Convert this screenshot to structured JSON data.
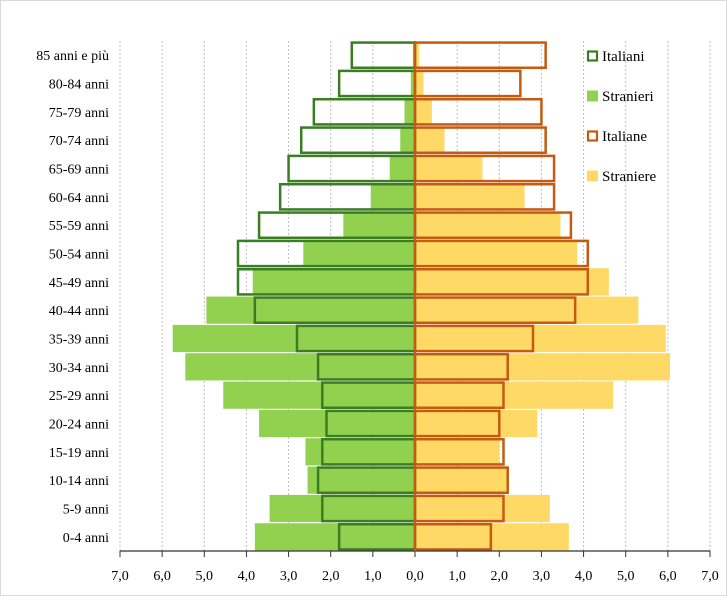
{
  "colors": {
    "italiani": "#3a7d22",
    "stranieri": "#92d050",
    "italiane": "#c55a11",
    "straniere": "#ffd966",
    "axis": "#333333",
    "grid": "#bfbfbf",
    "center": "#c55a11"
  },
  "chart_data": {
    "type": "bar",
    "orientation": "horizontal",
    "subtype": "population-pyramid",
    "categories": [
      "85 anni e più",
      "80-84 anni",
      "75-79 anni",
      "70-74 anni",
      "65-69 anni",
      "60-64 anni",
      "55-59 anni",
      "50-54 anni",
      "45-49 anni",
      "40-44 anni",
      "35-39 anni",
      "30-34 anni",
      "25-29 anni",
      "20-24 anni",
      "15-19 anni",
      "10-14 anni",
      "5-9 anni",
      "0-4 anni"
    ],
    "xlim": [
      -7,
      7
    ],
    "x_ticks": [
      -7,
      -6,
      -5,
      -4,
      -3,
      -2,
      -1,
      0,
      1,
      2,
      3,
      4,
      5,
      6,
      7
    ],
    "x_tick_labels": [
      "7,0",
      "6,0",
      "5,0",
      "4,0",
      "3,0",
      "2,0",
      "1,0",
      "0,0",
      "1,0",
      "2,0",
      "3,0",
      "4,0",
      "5,0",
      "6,0",
      "7,0"
    ],
    "grid": "vertical-dashed",
    "legend_position": "top-right",
    "series": [
      {
        "name": "Italiani",
        "side": "left",
        "style": "outline",
        "color_key": "italiani",
        "values": [
          1.5,
          1.8,
          2.4,
          2.7,
          3.0,
          3.2,
          3.7,
          4.2,
          4.2,
          3.8,
          2.8,
          2.3,
          2.2,
          2.1,
          2.2,
          2.3,
          2.2,
          1.8
        ]
      },
      {
        "name": "Stranieri",
        "side": "left",
        "style": "filled",
        "color_key": "stranieri",
        "values": [
          0.05,
          0.1,
          0.25,
          0.35,
          0.6,
          1.05,
          1.7,
          2.65,
          3.85,
          4.95,
          5.75,
          5.45,
          4.55,
          3.7,
          2.6,
          2.55,
          3.45,
          3.8
        ]
      },
      {
        "name": "Italiane",
        "side": "right",
        "style": "outline",
        "color_key": "italiane",
        "values": [
          3.1,
          2.5,
          3.0,
          3.1,
          3.3,
          3.3,
          3.7,
          4.1,
          4.1,
          3.8,
          2.8,
          2.2,
          2.1,
          2.0,
          2.1,
          2.2,
          2.1,
          1.8
        ]
      },
      {
        "name": "Straniere",
        "side": "right",
        "style": "filled",
        "color_key": "straniere",
        "values": [
          0.1,
          0.2,
          0.4,
          0.7,
          1.6,
          2.6,
          3.45,
          3.85,
          4.6,
          5.3,
          5.95,
          6.05,
          4.7,
          2.9,
          2.0,
          2.2,
          3.2,
          3.65
        ]
      }
    ]
  }
}
